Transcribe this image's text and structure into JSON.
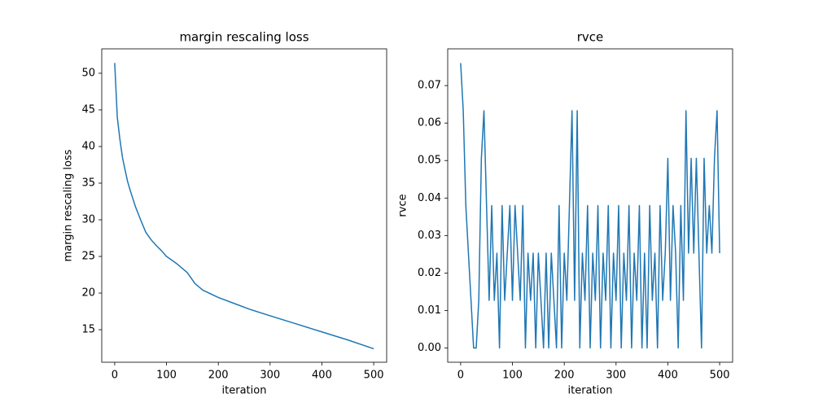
{
  "chart_data": [
    {
      "type": "line",
      "title": "margin rescaling loss",
      "x_label": "iteration",
      "y_label": "margin rescaling loss",
      "x": [
        0,
        5,
        10,
        15,
        20,
        25,
        30,
        40,
        50,
        60,
        70,
        80,
        90,
        100,
        120,
        140,
        155,
        170,
        200,
        230,
        260,
        300,
        350,
        400,
        450,
        500
      ],
      "values": [
        51.4,
        44,
        41,
        38.5,
        36.8,
        35.2,
        34,
        31.8,
        30,
        28.3,
        27.3,
        26.5,
        25.8,
        25,
        24,
        22.8,
        21.3,
        20.4,
        19.4,
        18.6,
        17.8,
        16.9,
        15.8,
        14.7,
        13.6,
        12.4
      ],
      "color": "#1f77b4",
      "xlim": [
        -25,
        525
      ],
      "ylim": [
        10.56,
        53.33
      ],
      "xticks": [
        0,
        100,
        200,
        300,
        400,
        500
      ],
      "yticks": [
        15,
        20,
        25,
        30,
        35,
        40,
        45,
        50
      ]
    },
    {
      "type": "line",
      "title": "rvce",
      "x_label": "iteration",
      "y_label": "rvce",
      "x": [
        0,
        5,
        10,
        15,
        20,
        25,
        30,
        35,
        40,
        45,
        50,
        55,
        60,
        65,
        70,
        75,
        80,
        85,
        90,
        95,
        100,
        105,
        110,
        115,
        120,
        125,
        130,
        135,
        140,
        145,
        150,
        155,
        160,
        165,
        170,
        175,
        180,
        185,
        190,
        195,
        200,
        205,
        210,
        215,
        220,
        225,
        230,
        235,
        240,
        245,
        250,
        255,
        260,
        265,
        270,
        275,
        280,
        285,
        290,
        295,
        300,
        305,
        310,
        315,
        320,
        325,
        330,
        335,
        340,
        345,
        350,
        355,
        360,
        365,
        370,
        375,
        380,
        385,
        390,
        395,
        400,
        405,
        410,
        415,
        420,
        425,
        430,
        435,
        440,
        445,
        450,
        455,
        460,
        465,
        470,
        475,
        480,
        485,
        490,
        495,
        500
      ],
      "values": [
        0.076,
        0.0633,
        0.038,
        0.0253,
        0.0127,
        0,
        0,
        0.0127,
        0.0506,
        0.0633,
        0.038,
        0.0127,
        0.038,
        0.0127,
        0.0253,
        0,
        0.038,
        0.0127,
        0.0253,
        0.038,
        0.0127,
        0.038,
        0.0253,
        0.0127,
        0.038,
        0,
        0.0253,
        0.0127,
        0.0253,
        0,
        0.0253,
        0.0127,
        0,
        0.0253,
        0,
        0.0253,
        0.0127,
        0,
        0.038,
        0,
        0.0253,
        0.0127,
        0.038,
        0.0633,
        0.0127,
        0.0633,
        0,
        0.0253,
        0.0127,
        0.038,
        0,
        0.0253,
        0.0127,
        0.038,
        0,
        0.0253,
        0.0127,
        0.038,
        0,
        0.0253,
        0.0127,
        0.038,
        0,
        0.0253,
        0.0127,
        0.038,
        0,
        0.0253,
        0.0127,
        0.038,
        0,
        0.0253,
        0,
        0.038,
        0.0127,
        0.0253,
        0,
        0.038,
        0.0127,
        0.0253,
        0.0506,
        0.0127,
        0.038,
        0.0253,
        0,
        0.038,
        0.0127,
        0.0633,
        0.0253,
        0.0506,
        0.0253,
        0.0506,
        0.0253,
        0,
        0.0506,
        0.0253,
        0.038,
        0.0253,
        0.0506,
        0.0633,
        0.0253
      ],
      "color": "#1f77b4",
      "xlim": [
        -25,
        525
      ],
      "ylim": [
        -0.0038,
        0.0798
      ],
      "xticks": [
        0,
        100,
        200,
        300,
        400,
        500
      ],
      "yticks": [
        {
          "value": 0,
          "label": "0.00"
        },
        {
          "value": 0.01,
          "label": "0.01"
        },
        {
          "value": 0.02,
          "label": "0.02"
        },
        {
          "value": 0.03,
          "label": "0.03"
        },
        {
          "value": 0.04,
          "label": "0.04"
        },
        {
          "value": 0.05,
          "label": "0.05"
        },
        {
          "value": 0.06,
          "label": "0.06"
        },
        {
          "value": 0.07,
          "label": "0.07"
        }
      ]
    }
  ]
}
